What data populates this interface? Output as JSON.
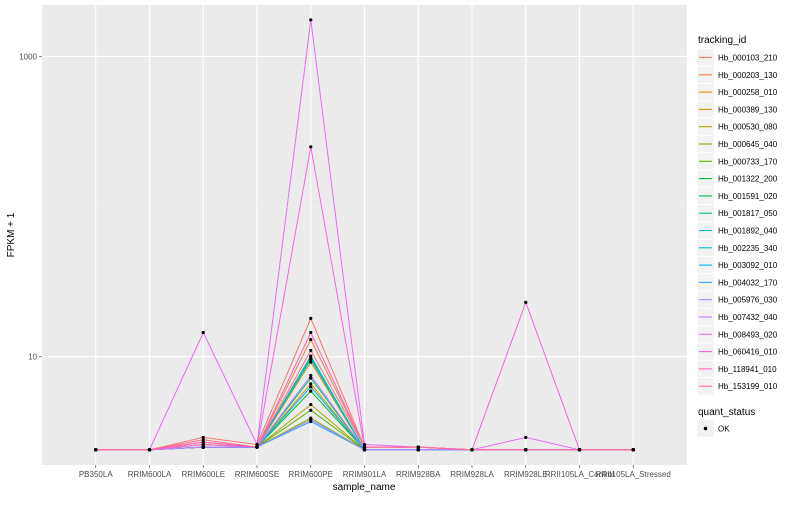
{
  "chart_data": {
    "type": "line",
    "title": "",
    "xlabel": "sample_name",
    "ylabel": "FPKM + 1",
    "yscale": "log10",
    "ylim": [
      1.9,
      2200
    ],
    "y_ticks": [
      10,
      1000
    ],
    "grid": true,
    "legend_placement": "right",
    "categories": [
      "PB350LA",
      "RRIM600LA",
      "RRIM600LE",
      "RRIM600SE",
      "RRIM600PE",
      "RRIM901LA",
      "RRIM928BA",
      "RRIM928LA",
      "RRIM928LE",
      "RRII105LA_Control",
      "RRII105LA_Stressed"
    ],
    "legend_title": "tracking_id",
    "series": [
      {
        "name": "Hb_000103_210",
        "color": "#F8766D",
        "values": [
          2.4,
          2.4,
          2.9,
          2.6,
          18,
          2.5,
          2.5,
          2.4,
          2.4,
          2.4,
          2.4
        ]
      },
      {
        "name": "Hb_000203_130",
        "color": "#EE8043",
        "values": [
          2.4,
          2.4,
          2.7,
          2.5,
          13,
          2.5,
          2.5,
          2.4,
          2.4,
          2.4,
          2.4
        ]
      },
      {
        "name": "Hb_000258_010",
        "color": "#DE8C00",
        "values": [
          2.4,
          2.4,
          2.6,
          2.5,
          9.2,
          2.4,
          2.4,
          2.4,
          2.4,
          2.4,
          2.4
        ]
      },
      {
        "name": "Hb_000389_130",
        "color": "#C99800",
        "values": [
          2.4,
          2.4,
          2.6,
          2.5,
          6.6,
          2.4,
          2.4,
          2.4,
          2.4,
          2.4,
          2.4
        ]
      },
      {
        "name": "Hb_000530_080",
        "color": "#AEA200",
        "values": [
          2.4,
          2.4,
          2.5,
          2.5,
          4.8,
          2.4,
          2.4,
          2.4,
          2.4,
          2.4,
          2.4
        ]
      },
      {
        "name": "Hb_000645_040",
        "color": "#8BAB00",
        "values": [
          2.4,
          2.4,
          2.5,
          2.5,
          3.9,
          2.4,
          2.4,
          2.4,
          2.4,
          2.4,
          2.4
        ]
      },
      {
        "name": "Hb_000733_170",
        "color": "#5BB300",
        "values": [
          2.4,
          2.4,
          2.5,
          2.5,
          4.4,
          2.4,
          2.4,
          2.4,
          2.4,
          2.4,
          2.4
        ]
      },
      {
        "name": "Hb_001322_200",
        "color": "#00BA38",
        "values": [
          2.4,
          2.4,
          2.5,
          2.5,
          5.9,
          2.4,
          2.4,
          2.4,
          2.4,
          2.4,
          2.4
        ]
      },
      {
        "name": "Hb_001591_020",
        "color": "#00BD5C",
        "values": [
          2.4,
          2.4,
          2.5,
          2.5,
          7.2,
          2.4,
          2.4,
          2.4,
          2.4,
          2.4,
          2.4
        ]
      },
      {
        "name": "Hb_001817_050",
        "color": "#00C08B",
        "values": [
          2.4,
          2.4,
          2.5,
          2.5,
          10.1,
          2.4,
          2.4,
          2.4,
          2.4,
          2.4,
          2.4
        ]
      },
      {
        "name": "Hb_001892_040",
        "color": "#00C0B2",
        "values": [
          2.4,
          2.4,
          2.5,
          2.5,
          9.8,
          2.4,
          2.4,
          2.4,
          2.4,
          2.4,
          2.4
        ]
      },
      {
        "name": "Hb_002235_340",
        "color": "#00BCD6",
        "values": [
          2.4,
          2.4,
          2.5,
          2.5,
          9.6,
          2.4,
          2.4,
          2.4,
          2.4,
          2.4,
          2.4
        ]
      },
      {
        "name": "Hb_003092_010",
        "color": "#00B4F0",
        "values": [
          2.4,
          2.4,
          2.5,
          2.5,
          6.3,
          2.4,
          2.4,
          2.4,
          2.4,
          2.4,
          2.4
        ]
      },
      {
        "name": "Hb_004032_170",
        "color": "#35A2FF",
        "values": [
          2.4,
          2.4,
          2.5,
          2.5,
          3.7,
          2.4,
          2.4,
          2.4,
          2.4,
          2.4,
          2.4
        ]
      },
      {
        "name": "Hb_005976_030",
        "color": "#8E92FF",
        "values": [
          2.4,
          2.4,
          2.5,
          2.5,
          3.8,
          2.4,
          2.4,
          2.4,
          2.4,
          2.4,
          2.4
        ]
      },
      {
        "name": "Hb_007432_040",
        "color": "#C77CFF",
        "values": [
          2.4,
          2.4,
          2.5,
          2.5,
          7.5,
          2.4,
          2.4,
          2.4,
          2.4,
          2.4,
          2.4
        ]
      },
      {
        "name": "Hb_008493_020",
        "color": "#E76BF3",
        "values": [
          2.4,
          2.4,
          14.5,
          2.6,
          1750,
          2.6,
          2.5,
          2.4,
          2.9,
          2.4,
          2.4
        ]
      },
      {
        "name": "Hb_060416_010",
        "color": "#F763E0",
        "values": [
          2.4,
          2.4,
          2.6,
          2.5,
          250,
          2.5,
          2.5,
          2.4,
          23,
          2.4,
          2.4
        ]
      },
      {
        "name": "Hb_118941_010",
        "color": "#FF62BC",
        "values": [
          2.4,
          2.4,
          2.7,
          2.5,
          14.5,
          2.5,
          2.5,
          2.4,
          2.4,
          2.4,
          2.4
        ]
      },
      {
        "name": "Hb_153199_010",
        "color": "#FF6C91",
        "values": [
          2.4,
          2.4,
          2.8,
          2.5,
          11,
          2.5,
          2.5,
          2.4,
          2.4,
          2.4,
          2.4
        ]
      }
    ],
    "shape_legend": {
      "title": "quant_status",
      "items": [
        "OK"
      ]
    }
  }
}
